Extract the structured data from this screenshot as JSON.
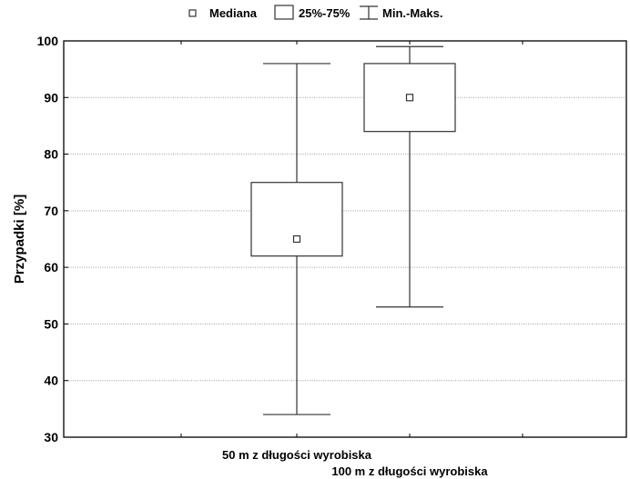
{
  "chart_data": {
    "type": "boxplot",
    "title": "",
    "xlabel": "",
    "ylabel": "Przypadki [%]",
    "ylim": [
      30,
      100
    ],
    "yticks": [
      30,
      40,
      50,
      60,
      70,
      80,
      90,
      100
    ],
    "grid": true,
    "legend_position": "top",
    "legend": [
      {
        "symbol": "median-square",
        "label": "Mediana"
      },
      {
        "symbol": "box",
        "label": "25%-75%"
      },
      {
        "symbol": "whisker",
        "label": "Min.-Maks."
      }
    ],
    "categories": [
      "50 m z długości wyrobiska",
      "100 m z długości wyrobiska"
    ],
    "boxes": [
      {
        "category": "50 m z długości wyrobiska",
        "min": 34,
        "q1": 62,
        "median": 65,
        "q3": 75,
        "max": 96
      },
      {
        "category": "100 m z długości wyrobiska",
        "min": 53,
        "q1": 84,
        "median": 90,
        "q3": 96,
        "max": 99
      }
    ]
  }
}
